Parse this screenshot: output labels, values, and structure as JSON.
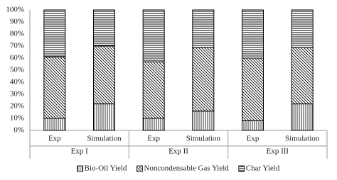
{
  "chart_data": {
    "type": "stacked-bar",
    "categories": [
      "Exp",
      "Simulation",
      "Exp",
      "Simulation",
      "Exp",
      "Simulation"
    ],
    "groups": [
      "Exp I",
      "Exp II",
      "Exp III"
    ],
    "series": [
      {
        "name": "Bio-Oil Yield",
        "color": "#000000",
        "pattern": "vertical",
        "values": [
          10,
          22,
          10,
          16,
          8,
          22
        ]
      },
      {
        "name": "Noncondensable Gas Yield",
        "color": "#000000",
        "pattern": "diagonal",
        "values": [
          51,
          48,
          47,
          53,
          52,
          47
        ]
      },
      {
        "name": "Char Yield",
        "color": "#000000",
        "pattern": "horizontal",
        "values": [
          39,
          30,
          43,
          31,
          40,
          31
        ]
      }
    ],
    "ylim": [
      0,
      100
    ],
    "yticks": [
      {
        "value": 0,
        "label": "0%"
      },
      {
        "value": 10,
        "label": "10%"
      },
      {
        "value": 20,
        "label": "20%"
      },
      {
        "value": 30,
        "label": "30%"
      },
      {
        "value": 40,
        "label": "40%"
      },
      {
        "value": 50,
        "label": "50%"
      },
      {
        "value": 60,
        "label": "60%"
      },
      {
        "value": 70,
        "label": "70%"
      },
      {
        "value": 80,
        "label": "80%"
      },
      {
        "value": 90,
        "label": "90%"
      },
      {
        "value": 100,
        "label": "100%"
      }
    ],
    "grid": false,
    "legend": "bottom"
  }
}
